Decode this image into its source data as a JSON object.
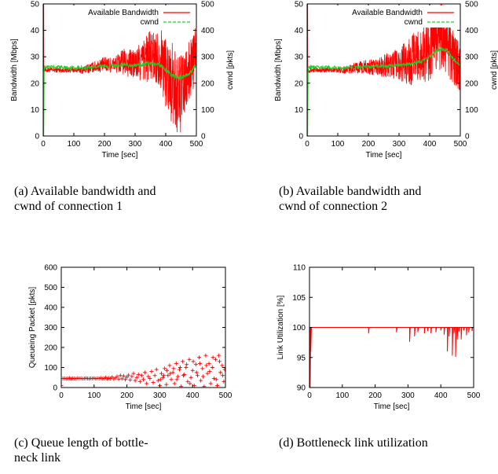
{
  "colors": {
    "red": "#ff0000",
    "green": "#22cc22",
    "axis": "#000000"
  },
  "chart_data": [
    {
      "id": "a",
      "type": "line",
      "caption": [
        "(a) Available bandwidth and",
        "cwnd of connection 1"
      ],
      "xlabel": "Time [sec]",
      "ylabel": "Bandwidth [Mbps]",
      "y2label": "cwnd [pkts]",
      "xlim": [
        0,
        500
      ],
      "ylim": [
        0,
        50
      ],
      "y2lim": [
        0,
        500
      ],
      "xticks": [
        0,
        100,
        200,
        300,
        400,
        500
      ],
      "yticks": [
        0,
        10,
        20,
        30,
        40,
        50
      ],
      "y2ticks": [
        0,
        100,
        200,
        300,
        400,
        500
      ],
      "legend_position": "top-right",
      "series": [
        {
          "name": "Available Bandwidth",
          "axis": "left",
          "style": "red",
          "x": [
            0,
            30,
            60,
            100,
            130,
            160,
            200,
            230,
            260,
            300,
            320,
            340,
            360,
            380,
            400,
            420,
            440,
            460,
            480,
            500
          ],
          "y": [
            25,
            25,
            25,
            25,
            25,
            26,
            27,
            27,
            28,
            27,
            28,
            30,
            30,
            30,
            25,
            20,
            15,
            18,
            25,
            32
          ],
          "spread": [
            1,
            1,
            1,
            1,
            1.5,
            2,
            3,
            3,
            5,
            6,
            8,
            10,
            10,
            11,
            14,
            16,
            16,
            14,
            12,
            10
          ]
        },
        {
          "name": "cwnd",
          "axis": "right",
          "style": "green",
          "x": [
            0,
            30,
            60,
            100,
            130,
            160,
            200,
            230,
            260,
            300,
            320,
            340,
            360,
            380,
            400,
            420,
            440,
            460,
            480,
            500
          ],
          "y": [
            260,
            260,
            260,
            258,
            258,
            262,
            265,
            266,
            268,
            268,
            270,
            275,
            272,
            270,
            250,
            230,
            220,
            225,
            240,
            270
          ]
        }
      ]
    },
    {
      "id": "b",
      "type": "line",
      "caption": [
        "(b) Available bandwidth and",
        "cwnd of connection 2"
      ],
      "xlabel": "Time [sec]",
      "ylabel": "Bandwidth [Mbps]",
      "y2label": "cwnd [pkts]",
      "xlim": [
        0,
        500
      ],
      "ylim": [
        0,
        50
      ],
      "y2lim": [
        0,
        500
      ],
      "xticks": [
        0,
        100,
        200,
        300,
        400,
        500
      ],
      "yticks": [
        0,
        10,
        20,
        30,
        40,
        50
      ],
      "y2ticks": [
        0,
        100,
        200,
        300,
        400,
        500
      ],
      "legend_position": "top-right",
      "series": [
        {
          "name": "Available Bandwidth",
          "axis": "left",
          "style": "red",
          "x": [
            0,
            30,
            60,
            100,
            130,
            160,
            200,
            230,
            260,
            300,
            320,
            340,
            360,
            380,
            400,
            420,
            440,
            460,
            480,
            500
          ],
          "y": [
            25,
            25,
            25,
            25,
            25,
            26,
            26,
            26,
            27,
            27,
            28,
            29,
            30,
            31,
            34,
            38,
            38,
            35,
            28,
            26
          ],
          "spread": [
            1,
            1,
            1,
            1,
            1.5,
            2,
            3,
            3,
            5,
            6,
            8,
            10,
            10,
            11,
            13,
            13,
            13,
            12,
            10,
            9
          ]
        },
        {
          "name": "cwnd",
          "axis": "right",
          "style": "green",
          "x": [
            0,
            30,
            60,
            100,
            130,
            160,
            200,
            230,
            260,
            300,
            320,
            340,
            360,
            380,
            400,
            420,
            440,
            460,
            480,
            500
          ],
          "y": [
            260,
            260,
            260,
            258,
            258,
            260,
            262,
            263,
            265,
            268,
            270,
            275,
            280,
            285,
            300,
            320,
            330,
            320,
            290,
            270
          ]
        }
      ]
    },
    {
      "id": "c",
      "type": "scatter",
      "caption": [
        "(c) Queue length of bottle-",
        "neck link"
      ],
      "xlabel": "Time [sec]",
      "ylabel": "Queueing Packet [pkts]",
      "xlim": [
        0,
        500
      ],
      "ylim": [
        0,
        600
      ],
      "xticks": [
        0,
        100,
        200,
        300,
        400,
        500
      ],
      "yticks": [
        0,
        100,
        200,
        300,
        400,
        500,
        600
      ],
      "series": [
        {
          "style": "red",
          "points": [
            [
              0,
              10
            ],
            [
              5,
              45
            ],
            [
              10,
              46
            ],
            [
              15,
              44
            ],
            [
              20,
              45
            ],
            [
              25,
              47
            ],
            [
              30,
              44
            ],
            [
              35,
              46
            ],
            [
              40,
              45
            ],
            [
              45,
              44
            ],
            [
              50,
              47
            ],
            [
              55,
              45
            ],
            [
              60,
              46
            ],
            [
              65,
              44
            ],
            [
              70,
              45
            ],
            [
              75,
              47
            ],
            [
              80,
              45
            ],
            [
              85,
              44
            ],
            [
              90,
              46
            ],
            [
              95,
              45
            ],
            [
              100,
              47
            ],
            [
              105,
              44
            ],
            [
              110,
              46
            ],
            [
              115,
              45
            ],
            [
              120,
              48
            ],
            [
              125,
              44
            ],
            [
              130,
              46
            ],
            [
              135,
              50
            ],
            [
              140,
              44
            ],
            [
              145,
              47
            ],
            [
              150,
              45
            ],
            [
              155,
              52
            ],
            [
              160,
              43
            ],
            [
              165,
              48
            ],
            [
              170,
              55
            ],
            [
              175,
              42
            ],
            [
              180,
              60
            ],
            [
              185,
              44
            ],
            [
              190,
              58
            ],
            [
              195,
              40
            ],
            [
              200,
              52
            ],
            [
              205,
              62
            ],
            [
              210,
              38
            ],
            [
              215,
              55
            ],
            [
              220,
              70
            ],
            [
              225,
              35
            ],
            [
              230,
              50
            ],
            [
              235,
              65
            ],
            [
              240,
              30
            ],
            [
              245,
              60
            ],
            [
              250,
              40
            ],
            [
              255,
              75
            ],
            [
              260,
              20
            ],
            [
              265,
              55
            ],
            [
              270,
              45
            ],
            [
              275,
              80
            ],
            [
              280,
              25
            ],
            [
              285,
              60
            ],
            [
              290,
              90
            ],
            [
              295,
              35
            ],
            [
              300,
              10
            ],
            [
              305,
              70
            ],
            [
              310,
              50
            ],
            [
              315,
              95
            ],
            [
              320,
              15
            ],
            [
              325,
              60
            ],
            [
              330,
              110
            ],
            [
              335,
              40
            ],
            [
              340,
              75
            ],
            [
              345,
              20
            ],
            [
              350,
              120
            ],
            [
              355,
              55
            ],
            [
              360,
              90
            ],
            [
              365,
              5
            ],
            [
              370,
              130
            ],
            [
              375,
              65
            ],
            [
              380,
              100
            ],
            [
              385,
              30
            ],
            [
              390,
              140
            ],
            [
              395,
              50
            ],
            [
              400,
              85
            ],
            [
              405,
              10
            ],
            [
              410,
              115
            ],
            [
              415,
              60
            ],
            [
              420,
              150
            ],
            [
              425,
              35
            ],
            [
              430,
              95
            ],
            [
              435,
              5
            ],
            [
              440,
              160
            ],
            [
              445,
              70
            ],
            [
              450,
              120
            ],
            [
              455,
              20
            ],
            [
              460,
              100
            ],
            [
              465,
              45
            ],
            [
              470,
              140
            ],
            [
              475,
              10
            ],
            [
              480,
              160
            ],
            [
              485,
              75
            ],
            [
              490,
              110
            ],
            [
              495,
              30
            ],
            [
              500,
              200
            ],
            [
              498,
              90
            ],
            [
              492,
              60
            ],
            [
              482,
              130
            ],
            [
              472,
              40
            ],
            [
              462,
              150
            ],
            [
              452,
              80
            ],
            [
              442,
              110
            ],
            [
              432,
              55
            ],
            [
              422,
              120
            ],
            [
              412,
              75
            ],
            [
              402,
              130
            ],
            [
              392,
              20
            ],
            [
              382,
              115
            ],
            [
              372,
              60
            ],
            [
              362,
              100
            ],
            [
              352,
              40
            ],
            [
              342,
              95
            ],
            [
              332,
              70
            ],
            [
              322,
              85
            ],
            [
              312,
              60
            ],
            [
              302,
              40
            ]
          ]
        }
      ]
    },
    {
      "id": "d",
      "type": "line",
      "caption": [
        "(d) Bottleneck link utilization"
      ],
      "xlabel": "Time [sec]",
      "ylabel": "Link Utilization [%]",
      "xlim": [
        0,
        500
      ],
      "ylim": [
        90,
        110
      ],
      "xticks": [
        0,
        100,
        200,
        300,
        400,
        500
      ],
      "yticks": [
        90,
        95,
        100,
        105,
        110
      ],
      "series": [
        {
          "style": "red",
          "baseline": 100,
          "dips": [
            [
              2,
              90
            ],
            [
              4,
              96
            ],
            [
              180,
              99
            ],
            [
              265,
              99.2
            ],
            [
              305,
              97.6
            ],
            [
              320,
              98.5
            ],
            [
              330,
              99.2
            ],
            [
              350,
              99
            ],
            [
              360,
              99.4
            ],
            [
              370,
              99
            ],
            [
              385,
              99.2
            ],
            [
              400,
              99.5
            ],
            [
              410,
              98.8
            ],
            [
              420,
              96
            ],
            [
              425,
              98.5
            ],
            [
              435,
              95.3
            ],
            [
              440,
              99
            ],
            [
              445,
              95.1
            ],
            [
              450,
              98
            ],
            [
              455,
              99.3
            ],
            [
              462,
              98
            ],
            [
              470,
              99.5
            ],
            [
              478,
              98.7
            ],
            [
              485,
              99.2
            ],
            [
              495,
              99.4
            ]
          ]
        }
      ]
    }
  ]
}
